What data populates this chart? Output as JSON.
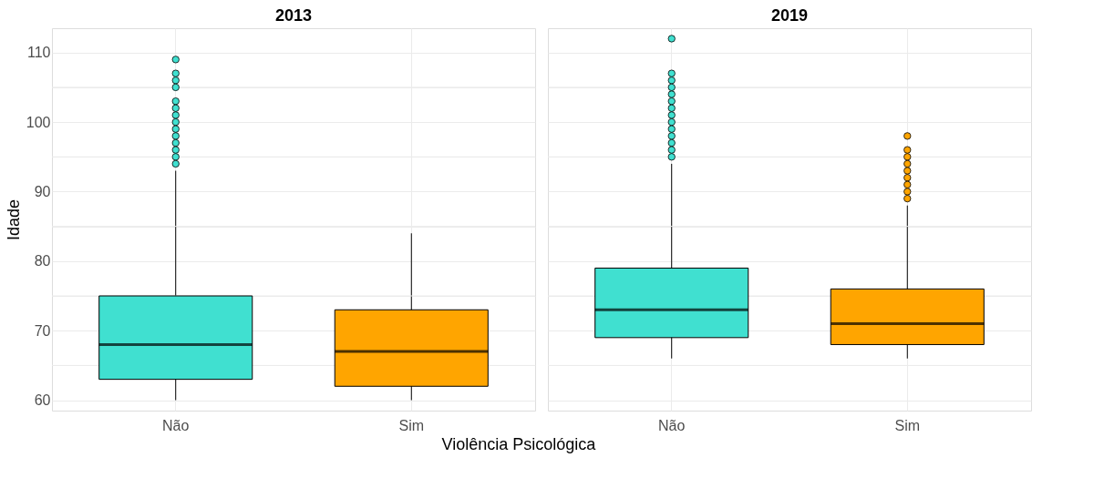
{
  "chart_data": [
    {
      "type": "box",
      "title": "2013",
      "ylabel": "Idade",
      "xlabel": "Violência Psicológica",
      "categories": [
        "Não",
        "Sim"
      ],
      "colors": [
        "#40e0d0",
        "#ffa500"
      ],
      "ylim": [
        58.5,
        113.5
      ],
      "yticks": [
        60,
        {
          "value": 65,
          "label": null
        },
        70,
        {
          "value": 75,
          "label": null
        },
        80,
        {
          "value": 85,
          "label": null
        },
        90,
        {
          "value": 95,
          "label": null
        },
        100,
        {
          "value": 105,
          "label": null
        },
        110
      ],
      "grid": true,
      "boxes": [
        {
          "low": 60,
          "q1": 63,
          "median": 68,
          "q3": 75,
          "high": 93,
          "outliers": [
            109,
            107,
            106,
            105,
            103,
            102,
            101,
            100,
            99,
            98,
            97,
            96,
            95,
            94
          ]
        },
        {
          "low": 60,
          "q1": 62,
          "median": 67,
          "q3": 73,
          "high": 84
        }
      ]
    },
    {
      "type": "box",
      "title": "2019",
      "categories": [
        "Não",
        "Sim"
      ],
      "colors": [
        "#40e0d0",
        "#ffa500"
      ],
      "ylim": [
        58.5,
        113.5
      ],
      "yticks": [
        60,
        {
          "value": 65,
          "label": null
        },
        70,
        {
          "value": 75,
          "label": null
        },
        80,
        {
          "value": 85,
          "label": null
        },
        90,
        {
          "value": 95,
          "label": null
        },
        100,
        {
          "value": 105,
          "label": null
        },
        110
      ],
      "grid": true,
      "tick_labels": "x",
      "boxes": [
        {
          "low": 66,
          "q1": 69,
          "median": 73,
          "q3": 79,
          "high": 94,
          "outliers": [
            112,
            107,
            106,
            105,
            104,
            103,
            102,
            101,
            100,
            99,
            98,
            97,
            96,
            95
          ]
        },
        {
          "low": 66,
          "q1": 68,
          "median": 71,
          "q3": 76,
          "high": 88,
          "outliers": [
            98,
            96,
            95,
            94,
            93,
            92,
            91,
            90,
            89
          ]
        }
      ]
    }
  ]
}
